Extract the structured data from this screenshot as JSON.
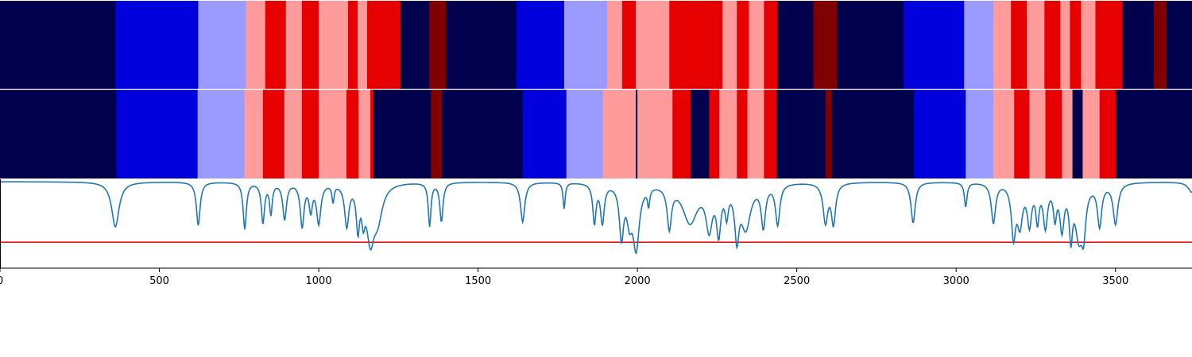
{
  "chart_data": {
    "type": "heatmap",
    "title": "",
    "xlabel": "",
    "ylabel": "",
    "xlim": [
      0,
      3740
    ],
    "x_ticks": [
      0,
      500,
      1000,
      1500,
      2000,
      2500,
      3000,
      3500
    ],
    "x_tick_labels": [
      "0",
      "500",
      "1000",
      "1500",
      "2000",
      "2500",
      "3000",
      "3500"
    ],
    "palette": {
      "0": "#00004c",
      "1": "#0000dc",
      "2": "#9b9bff",
      "3": "#ff9b9b",
      "4": "#e60000",
      "5": "#800000"
    },
    "band_top": {
      "segments": [
        [
          0,
          362,
          0
        ],
        [
          362,
          622,
          1
        ],
        [
          622,
          772,
          2
        ],
        [
          772,
          832,
          3
        ],
        [
          832,
          897,
          4
        ],
        [
          897,
          947,
          3
        ],
        [
          947,
          1000,
          4
        ],
        [
          1000,
          1092,
          3
        ],
        [
          1092,
          1122,
          4
        ],
        [
          1122,
          1152,
          3
        ],
        [
          1152,
          1257,
          4
        ],
        [
          1257,
          1347,
          0
        ],
        [
          1347,
          1400,
          5
        ],
        [
          1400,
          1620,
          0
        ],
        [
          1620,
          1770,
          1
        ],
        [
          1770,
          1905,
          2
        ],
        [
          1905,
          1952,
          3
        ],
        [
          1952,
          1995,
          4
        ],
        [
          1995,
          2100,
          3
        ],
        [
          2100,
          2267,
          4
        ],
        [
          2267,
          2312,
          3
        ],
        [
          2312,
          2350,
          4
        ],
        [
          2350,
          2397,
          3
        ],
        [
          2397,
          2440,
          4
        ],
        [
          2440,
          2552,
          0
        ],
        [
          2552,
          2627,
          5
        ],
        [
          2627,
          2835,
          0
        ],
        [
          2835,
          3025,
          1
        ],
        [
          3025,
          3117,
          2
        ],
        [
          3117,
          3172,
          3
        ],
        [
          3172,
          3222,
          4
        ],
        [
          3222,
          3277,
          3
        ],
        [
          3277,
          3327,
          4
        ],
        [
          3327,
          3357,
          3
        ],
        [
          3357,
          3392,
          4
        ],
        [
          3392,
          3437,
          3
        ],
        [
          3437,
          3522,
          4
        ],
        [
          3522,
          3620,
          0
        ],
        [
          3620,
          3660,
          5
        ],
        [
          3660,
          3740,
          0
        ]
      ]
    },
    "band_bottom": {
      "segments": [
        [
          0,
          365,
          0
        ],
        [
          365,
          620,
          1
        ],
        [
          620,
          767,
          2
        ],
        [
          767,
          825,
          3
        ],
        [
          825,
          892,
          4
        ],
        [
          892,
          947,
          3
        ],
        [
          947,
          1000,
          4
        ],
        [
          1000,
          1087,
          3
        ],
        [
          1087,
          1125,
          4
        ],
        [
          1125,
          1162,
          3
        ],
        [
          1162,
          1172,
          4
        ],
        [
          1172,
          1352,
          0
        ],
        [
          1352,
          1387,
          5
        ],
        [
          1387,
          1640,
          0
        ],
        [
          1640,
          1777,
          1
        ],
        [
          1777,
          1892,
          2
        ],
        [
          1892,
          1995,
          3
        ],
        [
          1995,
          2000,
          0
        ],
        [
          2000,
          2110,
          3
        ],
        [
          2110,
          2167,
          4
        ],
        [
          2167,
          2225,
          0
        ],
        [
          2225,
          2257,
          4
        ],
        [
          2257,
          2312,
          3
        ],
        [
          2312,
          2345,
          4
        ],
        [
          2345,
          2397,
          3
        ],
        [
          2397,
          2437,
          4
        ],
        [
          2437,
          2590,
          0
        ],
        [
          2590,
          2610,
          5
        ],
        [
          2610,
          2867,
          0
        ],
        [
          2867,
          3030,
          1
        ],
        [
          3030,
          3117,
          2
        ],
        [
          3117,
          3182,
          3
        ],
        [
          3182,
          3230,
          4
        ],
        [
          3230,
          3280,
          3
        ],
        [
          3280,
          3332,
          4
        ],
        [
          3332,
          3365,
          3
        ],
        [
          3365,
          3397,
          0
        ],
        [
          3397,
          3450,
          3
        ],
        [
          3450,
          3502,
          4
        ],
        [
          3502,
          3740,
          0
        ]
      ]
    },
    "line": {
      "color": "#1f77b4",
      "baseline": 1.0,
      "ylim": [
        0,
        1
      ],
      "dips": [
        [
          362,
          0.52,
          14
        ],
        [
          622,
          0.5,
          7
        ],
        [
          768,
          0.54,
          6
        ],
        [
          825,
          0.46,
          6
        ],
        [
          850,
          0.35,
          5
        ],
        [
          893,
          0.42,
          7
        ],
        [
          948,
          0.5,
          7
        ],
        [
          975,
          0.3,
          6
        ],
        [
          1000,
          0.46,
          8
        ],
        [
          1045,
          0.2,
          4
        ],
        [
          1088,
          0.48,
          8
        ],
        [
          1123,
          0.48,
          6
        ],
        [
          1140,
          0.3,
          6
        ],
        [
          1162,
          0.6,
          14
        ],
        [
          1185,
          0.38,
          18
        ],
        [
          1348,
          0.5,
          5
        ],
        [
          1385,
          0.45,
          6
        ],
        [
          1640,
          0.46,
          8
        ],
        [
          1770,
          0.3,
          4
        ],
        [
          1865,
          0.45,
          6
        ],
        [
          1890,
          0.45,
          7
        ],
        [
          1950,
          0.6,
          8
        ],
        [
          1975,
          0.35,
          10
        ],
        [
          1996,
          0.72,
          12
        ],
        [
          2035,
          0.2,
          4
        ],
        [
          2100,
          0.48,
          8
        ],
        [
          2165,
          0.45,
          28
        ],
        [
          2225,
          0.48,
          12
        ],
        [
          2255,
          0.52,
          8
        ],
        [
          2280,
          0.3,
          6
        ],
        [
          2312,
          0.56,
          8
        ],
        [
          2340,
          0.5,
          18
        ],
        [
          2395,
          0.48,
          8
        ],
        [
          2440,
          0.47,
          8
        ],
        [
          2590,
          0.45,
          9
        ],
        [
          2615,
          0.46,
          8
        ],
        [
          2865,
          0.47,
          8
        ],
        [
          3030,
          0.28,
          5
        ],
        [
          3117,
          0.46,
          8
        ],
        [
          3180,
          0.59,
          8
        ],
        [
          3200,
          0.45,
          10
        ],
        [
          3230,
          0.45,
          8
        ],
        [
          3255,
          0.4,
          6
        ],
        [
          3280,
          0.48,
          8
        ],
        [
          3310,
          0.36,
          6
        ],
        [
          3332,
          0.5,
          8
        ],
        [
          3360,
          0.55,
          6
        ],
        [
          3385,
          0.58,
          14
        ],
        [
          3400,
          0.45,
          8
        ],
        [
          3450,
          0.48,
          8
        ],
        [
          3500,
          0.47,
          9
        ],
        [
          3740,
          0.12,
          14
        ]
      ]
    },
    "threshold": {
      "value": 0.3,
      "color": "#e60000"
    }
  }
}
